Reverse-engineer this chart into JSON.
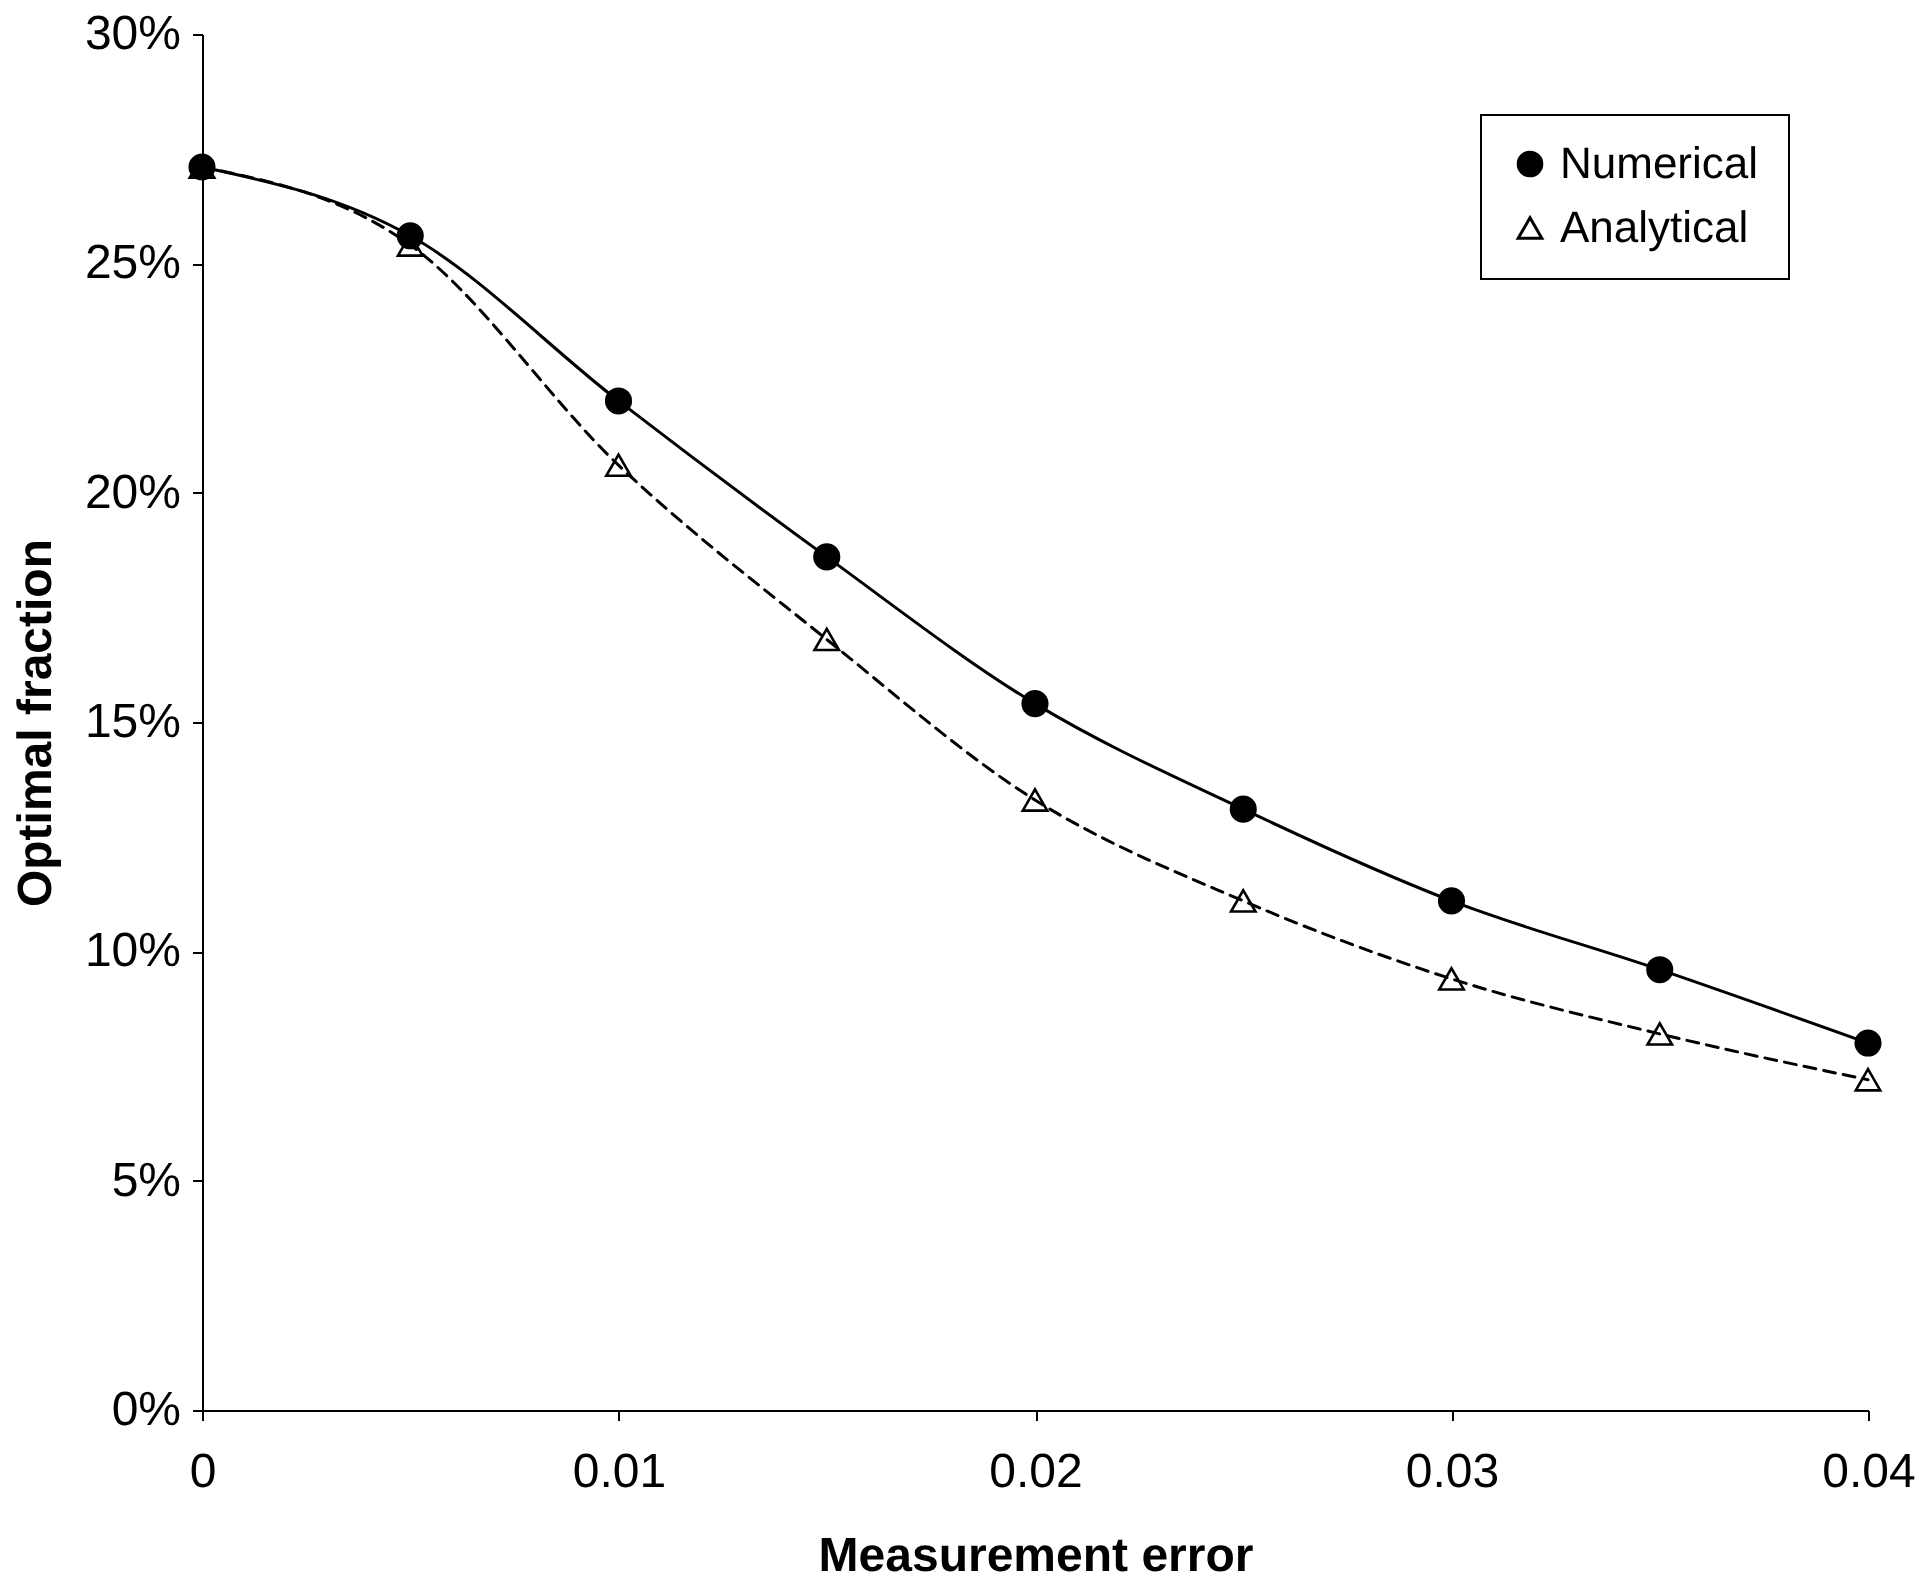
{
  "chart_data": {
    "type": "line",
    "xlabel": "Measurement error",
    "ylabel": "Optimal fraction",
    "x": [
      0,
      0.005,
      0.01,
      0.015,
      0.02,
      0.025,
      0.03,
      0.035,
      0.04
    ],
    "series": [
      {
        "name": "Numerical",
        "color": "#000000",
        "marker": "circle",
        "line_style": "solid",
        "values": [
          27.1,
          25.6,
          22.0,
          18.6,
          15.4,
          13.1,
          11.1,
          9.6,
          8.0
        ]
      },
      {
        "name": "Analytical",
        "color": "#000000",
        "marker": "triangle",
        "line_style": "dashed",
        "values": [
          27.1,
          25.4,
          20.6,
          16.8,
          13.3,
          11.1,
          9.4,
          8.2,
          7.2
        ]
      }
    ],
    "xlim": [
      0,
      0.04
    ],
    "xticks": [
      0,
      0.01,
      0.02,
      0.03,
      0.04
    ],
    "ylim": [
      0,
      30
    ],
    "yticks": [
      {
        "value": 0,
        "label": "0%"
      },
      {
        "value": 5,
        "label": "5%"
      },
      {
        "value": 10,
        "label": "10%"
      },
      {
        "value": 15,
        "label": "15%"
      },
      {
        "value": 20,
        "label": "20%"
      },
      {
        "value": 25,
        "label": "25%"
      },
      {
        "value": 30,
        "label": "30%"
      }
    ],
    "grid": false,
    "legend": "top right"
  }
}
